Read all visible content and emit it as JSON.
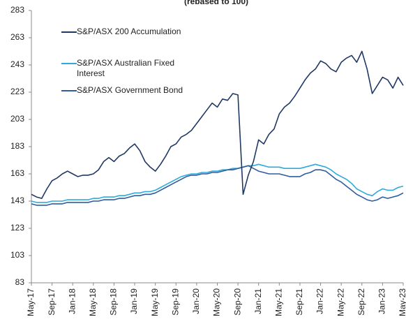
{
  "chart_data": {
    "type": "line",
    "subtitle": "(rebased to 100)",
    "categories": [
      "May-17",
      null,
      null,
      null,
      "Sep-17",
      null,
      null,
      null,
      "Jan-18",
      null,
      null,
      null,
      "May-18",
      null,
      null,
      null,
      "Sep-18",
      null,
      null,
      null,
      "Jan-19",
      null,
      null,
      null,
      "May-19",
      null,
      null,
      null,
      "Sep-19",
      null,
      null,
      null,
      "Jan-20",
      null,
      null,
      null,
      "May-20",
      null,
      null,
      null,
      "Sep-20",
      null,
      null,
      null,
      "Jan-21",
      null,
      null,
      null,
      "May-21",
      null,
      null,
      null,
      "Sep-21",
      null,
      null,
      null,
      "Jan-22",
      null,
      null,
      null,
      "May-22",
      null,
      null,
      null,
      "Sep-22",
      null,
      null,
      null,
      "Jan-23",
      null,
      null,
      null,
      "May-23"
    ],
    "series": [
      {
        "name": "S&P/ASX 200 Accumulation",
        "color": "#1f3864",
        "values": [
          148,
          146,
          145,
          152,
          158,
          160,
          163,
          165,
          163,
          161,
          162,
          162,
          163,
          166,
          172,
          175,
          172,
          176,
          178,
          182,
          185,
          180,
          172,
          168,
          165,
          170,
          176,
          183,
          185,
          190,
          192,
          195,
          200,
          205,
          210,
          215,
          212,
          218,
          217,
          222,
          221,
          148,
          162,
          172,
          188,
          185,
          192,
          196,
          207,
          212,
          215,
          220,
          226,
          232,
          237,
          240,
          246,
          244,
          240,
          238,
          245,
          248,
          250,
          245,
          253,
          240,
          222,
          228,
          234,
          232,
          226,
          234,
          228
        ]
      },
      {
        "name": "S&P/ASX Australian Fixed Interest",
        "color": "#2eaadc",
        "values": [
          143,
          142,
          142,
          142,
          143,
          143,
          143,
          144,
          144,
          144,
          144,
          144,
          145,
          145,
          146,
          146,
          146,
          147,
          147,
          148,
          149,
          149,
          150,
          150,
          151,
          153,
          155,
          157,
          159,
          161,
          162,
          163,
          163,
          164,
          164,
          165,
          165,
          166,
          166,
          167,
          167,
          168,
          169,
          169,
          170,
          169,
          168,
          168,
          168,
          167,
          167,
          167,
          167,
          168,
          169,
          170,
          169,
          168,
          166,
          163,
          161,
          159,
          156,
          152,
          150,
          148,
          147,
          150,
          152,
          151,
          151,
          153,
          154
        ]
      },
      {
        "name": "S&P/ASX Government Bond",
        "color": "#2f5c9e",
        "values": [
          141,
          140,
          140,
          140,
          141,
          141,
          141,
          142,
          142,
          142,
          142,
          142,
          143,
          143,
          144,
          144,
          144,
          145,
          145,
          146,
          147,
          147,
          148,
          148,
          149,
          151,
          153,
          155,
          157,
          159,
          161,
          162,
          162,
          163,
          163,
          164,
          164,
          165,
          166,
          166,
          167,
          168,
          169,
          167,
          165,
          164,
          163,
          163,
          163,
          162,
          161,
          161,
          161,
          163,
          164,
          166,
          166,
          165,
          162,
          159,
          157,
          154,
          151,
          148,
          146,
          144,
          143,
          144,
          146,
          145,
          146,
          147,
          149
        ]
      }
    ],
    "ylim": [
      83,
      283
    ],
    "yticks": [
      83,
      103,
      123,
      143,
      163,
      183,
      203,
      223,
      243,
      263,
      283
    ],
    "legend": "upper left"
  }
}
